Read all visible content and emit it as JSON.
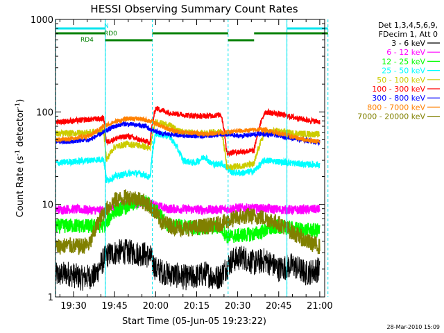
{
  "chart_data": {
    "type": "line",
    "title": "HESSI Observing Summary Count Rates",
    "xlabel": "Start Time (05-Jun-05 19:23:22)",
    "ylabel": "Count Rate (s",
    "ylabel_sup": "-1",
    "ylabel_mid": " detector",
    "ylabel_end": ")",
    "yscale": "log",
    "x_domain_min": [
      19.39,
      21.03
    ],
    "ylim": [
      1,
      1000
    ],
    "x_ticks": [
      {
        "label": "19:30",
        "min": 1170
      },
      {
        "label": "19:45",
        "min": 1185
      },
      {
        "label": "20:00",
        "min": 1200
      },
      {
        "label": "20:15",
        "min": 1215
      },
      {
        "label": "20:30",
        "min": 1230
      },
      {
        "label": "20:45",
        "min": 1245
      },
      {
        "label": "21:00",
        "min": 1260
      }
    ],
    "y_ticks": [
      {
        "label": "1",
        "v": 1
      },
      {
        "label": "10",
        "v": 10
      },
      {
        "label": "100",
        "v": 100
      },
      {
        "label": "1000",
        "v": 1000
      }
    ],
    "legend_header": [
      "Det 1,3,4,5,6,9,",
      "FDecim 1, Att 0"
    ],
    "legend_placement": "right",
    "series": [
      {
        "name": "3 - 6 keV",
        "color": "#000000",
        "x": [
          1163.5,
          1168,
          1173,
          1178,
          1182,
          1185,
          1188,
          1192,
          1196,
          1198,
          1200,
          1204,
          1208,
          1212,
          1216,
          1218,
          1220,
          1222,
          1224,
          1228,
          1232,
          1236,
          1240,
          1245,
          1250,
          1255,
          1260
        ],
        "y": [
          1.7,
          1.8,
          1.6,
          1.7,
          2.8,
          3.0,
          3.1,
          3.0,
          2.9,
          2.7,
          2.0,
          1.8,
          1.7,
          1.6,
          1.7,
          1.8,
          1.7,
          1.6,
          1.7,
          2.5,
          2.7,
          2.3,
          2.5,
          2.0,
          2.2,
          1.8,
          2.0
        ]
      },
      {
        "name": "6 - 12 keV",
        "color": "#ff00ff",
        "x": [
          1163.5,
          1170,
          1176,
          1181.5,
          1185,
          1190,
          1195,
          1198,
          1204,
          1210,
          1218,
          1222,
          1226,
          1230,
          1235,
          1240,
          1245,
          1250,
          1255,
          1260
        ],
        "y": [
          8.8,
          8.9,
          8.7,
          8.6,
          9.5,
          10.0,
          10.3,
          10.2,
          9.0,
          8.9,
          8.7,
          8.8,
          8.9,
          9.2,
          9.1,
          9.0,
          8.8,
          8.7,
          8.8,
          8.9
        ]
      },
      {
        "name": "12 - 25 keV",
        "color": "#00ff00",
        "x": [
          1163.5,
          1170,
          1176,
          1181.5,
          1185,
          1190,
          1195,
          1198,
          1204,
          1210,
          1218,
          1222,
          1224,
          1226,
          1230,
          1236,
          1240,
          1245,
          1250,
          1255,
          1260
        ],
        "y": [
          5.8,
          5.9,
          5.8,
          5.9,
          8.5,
          9.5,
          11.0,
          10.0,
          6.0,
          5.8,
          5.5,
          5.7,
          5.6,
          4.5,
          4.6,
          4.8,
          5.2,
          5.8,
          5.5,
          5.3,
          5.2
        ]
      },
      {
        "name": "25 - 50 keV",
        "color": "#00ffff",
        "x": [
          1163.5,
          1170,
          1176,
          1181,
          1182,
          1185,
          1188,
          1192,
          1196,
          1198,
          1200,
          1202,
          1205,
          1207,
          1210,
          1214,
          1216,
          1218,
          1220,
          1222,
          1224,
          1228,
          1232,
          1236,
          1240,
          1245,
          1250,
          1255,
          1260
        ],
        "y": [
          28,
          29,
          30,
          31,
          18,
          20,
          21,
          22,
          21,
          19,
          58,
          57,
          55,
          45,
          30,
          28,
          30,
          33,
          28,
          27,
          28,
          22,
          22,
          23,
          30,
          29,
          28,
          27,
          27
        ]
      },
      {
        "name": "50 - 100 keV",
        "color": "#cccc00",
        "x": [
          1163.5,
          1170,
          1176,
          1181,
          1182,
          1185,
          1190,
          1195,
          1198,
          1200,
          1203,
          1206,
          1208,
          1212,
          1216,
          1220,
          1224,
          1226,
          1230,
          1236,
          1240,
          1245,
          1250,
          1255,
          1260
        ],
        "y": [
          58,
          59,
          60,
          62,
          30,
          42,
          45,
          43,
          40,
          78,
          74,
          70,
          62,
          60,
          58,
          60,
          61,
          25,
          26,
          27,
          60,
          62,
          59,
          58,
          57
        ]
      },
      {
        "name": "100 - 300 keV",
        "color": "#ff0000",
        "x": [
          1163.5,
          1170,
          1176,
          1181,
          1182,
          1186,
          1190,
          1194,
          1198,
          1200,
          1204,
          1208,
          1212,
          1216,
          1220,
          1224,
          1226,
          1230,
          1236,
          1240,
          1245,
          1250,
          1255,
          1260
        ],
        "y": [
          78,
          80,
          83,
          85,
          47,
          52,
          55,
          50,
          47,
          110,
          100,
          95,
          92,
          90,
          91,
          93,
          36,
          37,
          38,
          100,
          95,
          88,
          82,
          78
        ]
      },
      {
        "name": "300 - 800 keV",
        "color": "#0000ff",
        "x": [
          1163.5,
          1168,
          1172,
          1176,
          1181,
          1184,
          1188,
          1192,
          1196,
          1198,
          1202,
          1206,
          1210,
          1214,
          1218,
          1222,
          1226,
          1230,
          1234,
          1238,
          1242,
          1246,
          1250,
          1255,
          1260
        ],
        "y": [
          48,
          47,
          49,
          50,
          60,
          68,
          74,
          73,
          70,
          65,
          58,
          57,
          56,
          55,
          55,
          56,
          57,
          55,
          56,
          58,
          57,
          55,
          52,
          49,
          47
        ]
      },
      {
        "name": "800 - 7000 keV",
        "color": "#ff8000",
        "x": [
          1163.5,
          1168,
          1172,
          1176,
          1181,
          1185,
          1190,
          1194,
          1198,
          1202,
          1206,
          1210,
          1214,
          1218,
          1222,
          1226,
          1230,
          1234,
          1238,
          1242,
          1246,
          1250,
          1255,
          1260
        ],
        "y": [
          50,
          51,
          53,
          55,
          70,
          78,
          85,
          84,
          80,
          70,
          63,
          60,
          59,
          58,
          59,
          60,
          62,
          63,
          65,
          62,
          58,
          54,
          50,
          48
        ]
      },
      {
        "name": "7000 - 20000 keV",
        "color": "#808000",
        "x": [
          1163.5,
          1168,
          1172,
          1176,
          1181,
          1185,
          1190,
          1194,
          1198,
          1202,
          1206,
          1210,
          1214,
          1218,
          1222,
          1226,
          1230,
          1234,
          1238,
          1242,
          1246,
          1250,
          1255,
          1260
        ],
        "y": [
          3.5,
          3.6,
          3.5,
          3.7,
          8.0,
          11.0,
          12.0,
          11.5,
          9.5,
          6.5,
          5.8,
          5.5,
          5.6,
          5.8,
          6.0,
          6.5,
          7.2,
          7.5,
          7.3,
          6.8,
          6.0,
          5.0,
          4.0,
          3.5
        ]
      }
    ],
    "vlines_min": [
      1181.6,
      1248
    ],
    "dashed_vlines_min": [
      1163.5,
      1181.6,
      1198.8,
      1226.5,
      1248,
      1263
    ],
    "attenuator_lines": [
      {
        "label": "N",
        "color": "#00e5ee",
        "level": 1,
        "segments": [
          [
            1163.5,
            1181.6
          ],
          [
            1248,
            1263
          ]
        ]
      },
      {
        "label": "RD0",
        "color": "#008000",
        "level": 2,
        "segments": [
          [
            1163.5,
            1181.6
          ],
          [
            1198.8,
            1226.5
          ],
          [
            1236,
            1263
          ]
        ]
      },
      {
        "label": "RD4",
        "color": "#008000",
        "level": 3,
        "segments": [
          [
            1181.6,
            1198.8
          ],
          [
            1226.5,
            1236
          ]
        ]
      }
    ],
    "timestamp": "28-Mar-2010 15:09",
    "grid": false
  }
}
